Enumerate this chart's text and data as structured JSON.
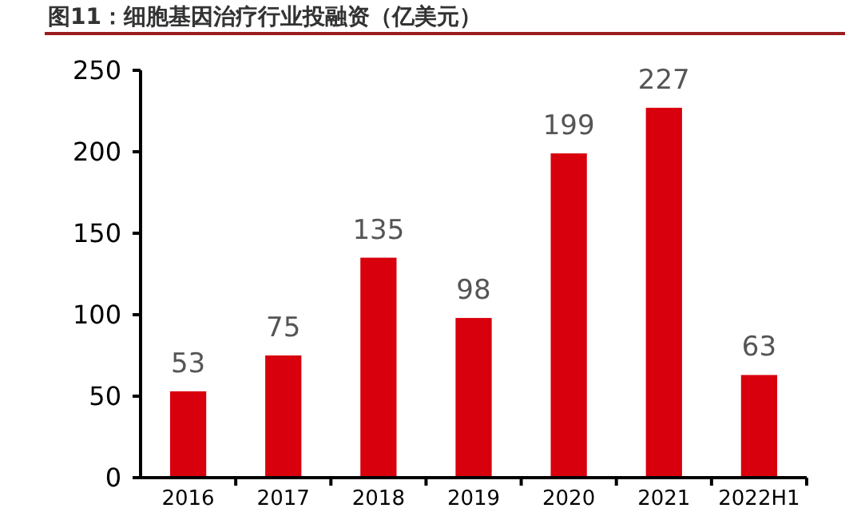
{
  "chart_data": {
    "type": "bar",
    "title": "图11：细胞基因治疗行业投融资（亿美元）",
    "categories": [
      "2016",
      "2017",
      "2018",
      "2019",
      "2020",
      "2021",
      "2022H1"
    ],
    "values": [
      53,
      75,
      135,
      98,
      199,
      227,
      63
    ],
    "color": "#d9000d",
    "ylim": [
      0,
      250
    ],
    "yticks": [
      0,
      50,
      100,
      150,
      200,
      250
    ],
    "grid": false,
    "data_labels": true
  }
}
